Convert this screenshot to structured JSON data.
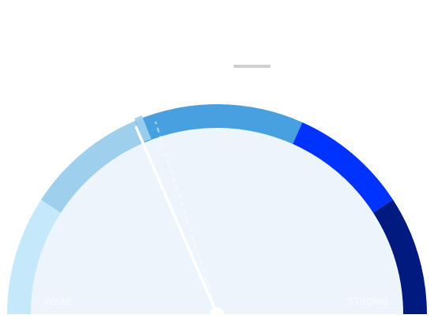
{
  "gauge": {
    "min_label": "WEAK",
    "max_label": "STRONG",
    "value_fraction": 0.37,
    "segment_colors": [
      "#c6e8fb",
      "#9ed0ee",
      "#47a0e0",
      "#0033ff",
      "#001a80"
    ],
    "face_color": "#ecf4fc",
    "needle_color": "#ffffff"
  }
}
